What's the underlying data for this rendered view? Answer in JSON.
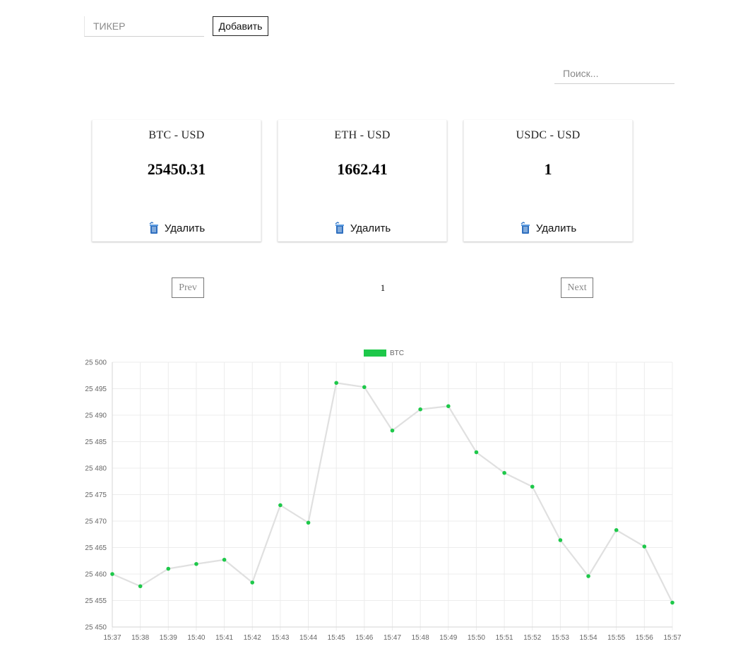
{
  "ticker_form": {
    "placeholder": "ТИКЕР",
    "add_label": "Добавить"
  },
  "search": {
    "placeholder": "Поиск..."
  },
  "cards": [
    {
      "title": "BTC - USD",
      "price": "25450.31",
      "delete_label": "Удалить"
    },
    {
      "title": "ETH - USD",
      "price": "1662.41",
      "delete_label": "Удалить"
    },
    {
      "title": "USDC - USD",
      "price": "1",
      "delete_label": "Удалить"
    }
  ],
  "pagination": {
    "prev_label": "Prev",
    "page": "1",
    "next_label": "Next"
  },
  "colors": {
    "line": "#e0e0e0",
    "point": "#1ec84a",
    "legend": "#1ec84a",
    "grid": "#ececec"
  },
  "icons": {
    "delete": "trash-icon"
  },
  "chart_data": {
    "type": "line",
    "legend": [
      {
        "name": "BTC",
        "position": "top-center"
      }
    ],
    "x": [
      "15:37",
      "15:38",
      "15:39",
      "15:40",
      "15:41",
      "15:42",
      "15:43",
      "15:44",
      "15:45",
      "15:46",
      "15:47",
      "15:48",
      "15:49",
      "15:50",
      "15:51",
      "15:52",
      "15:53",
      "15:54",
      "15:55",
      "15:56",
      "15:57"
    ],
    "series": [
      {
        "name": "BTC",
        "values": [
          25460.0,
          25457.7,
          25461.0,
          25461.9,
          25462.7,
          25458.4,
          25473.0,
          25469.7,
          25496.1,
          25495.3,
          25487.1,
          25491.1,
          25491.7,
          25483.0,
          25479.1,
          25476.5,
          25466.4,
          25459.6,
          25468.3,
          25465.2,
          25454.6
        ]
      }
    ],
    "ylim": [
      25450,
      25500
    ],
    "yticks": [
      "25 450",
      "25 455",
      "25 460",
      "25 465",
      "25 470",
      "25 475",
      "25 480",
      "25 485",
      "25 490",
      "25 495",
      "25 500"
    ],
    "grid": true
  }
}
